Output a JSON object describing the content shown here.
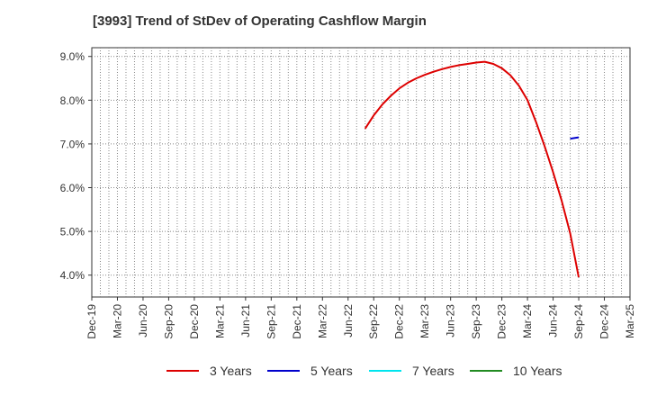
{
  "chart_data": {
    "type": "line",
    "title": "[3993]  Trend of StDev of Operating Cashflow Margin",
    "xlabel": "",
    "ylabel": "",
    "y_tick_labels": [
      "4.0%",
      "5.0%",
      "6.0%",
      "7.0%",
      "8.0%",
      "9.0%"
    ],
    "y_ticks": [
      4.0,
      5.0,
      6.0,
      7.0,
      8.0,
      9.0
    ],
    "ylim": [
      3.5,
      9.2
    ],
    "x_tick_labels": [
      "Dec-19",
      "Mar-20",
      "Jun-20",
      "Sep-20",
      "Dec-20",
      "Mar-21",
      "Jun-21",
      "Sep-21",
      "Dec-21",
      "Mar-22",
      "Jun-22",
      "Sep-22",
      "Dec-22",
      "Mar-23",
      "Jun-23",
      "Sep-23",
      "Dec-23",
      "Mar-24",
      "Jun-24",
      "Sep-24",
      "Dec-24",
      "Mar-25"
    ],
    "grid": true,
    "legend_position": "bottom",
    "series": [
      {
        "name": "3 Years",
        "color": "#dd0000",
        "x": [
          "2022-08",
          "2022-09",
          "2022-10",
          "2022-11",
          "2022-12",
          "2023-01",
          "2023-02",
          "2023-03",
          "2023-04",
          "2023-05",
          "2023-06",
          "2023-07",
          "2023-08",
          "2023-09",
          "2023-10",
          "2023-11",
          "2023-12",
          "2024-01",
          "2024-02",
          "2024-03",
          "2024-04",
          "2024-05",
          "2024-06",
          "2024-07",
          "2024-08",
          "2024-09"
        ],
        "values": [
          7.35,
          7.65,
          7.9,
          8.1,
          8.27,
          8.4,
          8.5,
          8.58,
          8.65,
          8.71,
          8.76,
          8.8,
          8.83,
          8.86,
          8.88,
          8.83,
          8.73,
          8.57,
          8.33,
          8.0,
          7.5,
          6.95,
          6.35,
          5.7,
          4.95,
          3.95
        ]
      },
      {
        "name": "5 Years",
        "color": "#0000cc",
        "x": [
          "2024-08",
          "2024-09"
        ],
        "values": [
          7.12,
          7.15
        ]
      },
      {
        "name": "7 Years",
        "color": "#00e5ee",
        "x": [],
        "values": []
      },
      {
        "name": "10 Years",
        "color": "#228b22",
        "x": [],
        "values": []
      }
    ]
  }
}
